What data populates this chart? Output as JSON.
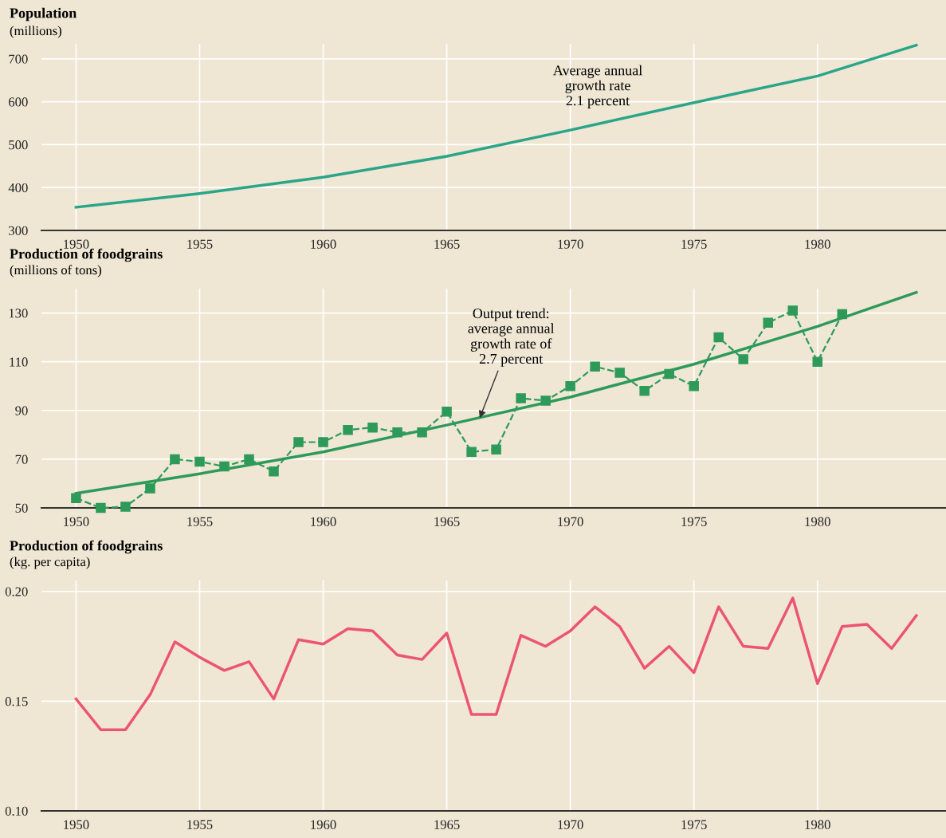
{
  "chart_data": [
    {
      "type": "line",
      "title": "Population",
      "subtitle": "(millions)",
      "xlim": [
        1948.6,
        1985.2
      ],
      "ylim": [
        300,
        735
      ],
      "xticks": [
        1950,
        1955,
        1960,
        1965,
        1970,
        1975,
        1980
      ],
      "yticks": [
        300,
        400,
        500,
        600,
        700
      ],
      "grid": true,
      "series": [
        {
          "color": "#2aa58a",
          "x": [
            1950,
            1955,
            1960,
            1965,
            1970,
            1975,
            1980,
            1984
          ],
          "values": [
            354,
            386,
            424,
            473,
            534,
            598,
            660,
            732
          ]
        }
      ],
      "annotations": [
        "Average annual\ngrowth rate\n2.1 percent"
      ]
    },
    {
      "type": "line",
      "title": "Production of foodgrains",
      "subtitle": "(millions of tons)",
      "xlim": [
        1948.6,
        1985.2
      ],
      "ylim": [
        50,
        140
      ],
      "xticks": [
        1950,
        1955,
        1960,
        1965,
        1970,
        1975,
        1980
      ],
      "yticks": [
        50,
        70,
        90,
        110,
        130
      ],
      "grid": true,
      "series": [
        {
          "color": "#2e9a5a",
          "marker": "square",
          "line_style": "dashed",
          "x": [
            1950,
            1951,
            1952,
            1953,
            1954,
            1955,
            1956,
            1957,
            1958,
            1959,
            1960,
            1961,
            1962,
            1963,
            1964,
            1965,
            1966,
            1967,
            1968,
            1969,
            1970,
            1971,
            1972,
            1973,
            1974,
            1975,
            1976,
            1977,
            1978,
            1979,
            1980,
            1981
          ],
          "values": [
            54,
            50,
            50.5,
            58,
            70,
            69,
            67,
            70,
            65,
            77,
            77,
            82,
            83,
            81,
            81,
            89.5,
            73,
            74,
            95,
            94,
            100,
            108,
            105.5,
            98,
            105,
            100,
            120,
            111,
            126,
            131,
            110,
            129.5
          ]
        },
        {
          "color": "#2e9a5a",
          "marker": "none",
          "line_style": "solid",
          "x": [
            1950,
            1955,
            1960,
            1965,
            1970,
            1975,
            1980,
            1984
          ],
          "values": [
            56,
            64,
            73,
            84,
            95.5,
            109,
            124.5,
            138.5
          ]
        }
      ],
      "annotations": [
        {
          "text": "Output trend:\naverage annual\ngrowth rate of\n2.7 percent",
          "x": 1966.3,
          "y": 86
        }
      ]
    },
    {
      "type": "line",
      "title": "Production of foodgrains",
      "subtitle": "(kg. per capita)",
      "xlim": [
        1948.6,
        1985.2
      ],
      "ylim": [
        0.1,
        0.205
      ],
      "xticks": [
        1950,
        1955,
        1960,
        1965,
        1970,
        1975,
        1980
      ],
      "yticks": [
        {
          "value": 0.1,
          "label": "0.10"
        },
        {
          "value": 0.15,
          "label": "0.15"
        },
        {
          "value": 0.2,
          "label": "0.20"
        }
      ],
      "grid": true,
      "series": [
        {
          "color": "#ec5570",
          "x": [
            1950,
            1951,
            1952,
            1953,
            1954,
            1955,
            1956,
            1957,
            1958,
            1959,
            1960,
            1961,
            1962,
            1963,
            1964,
            1965,
            1966,
            1967,
            1968,
            1969,
            1970,
            1971,
            1972,
            1973,
            1974,
            1975,
            1976,
            1977,
            1978,
            1979,
            1980,
            1981,
            1982,
            1983,
            1984
          ],
          "values": [
            0.151,
            0.137,
            0.137,
            0.153,
            0.177,
            0.17,
            0.164,
            0.168,
            0.151,
            0.178,
            0.176,
            0.183,
            0.182,
            0.171,
            0.169,
            0.181,
            0.144,
            0.144,
            0.18,
            0.175,
            0.182,
            0.193,
            0.184,
            0.165,
            0.175,
            0.163,
            0.193,
            0.175,
            0.174,
            0.197,
            0.158,
            0.184,
            0.185,
            0.174,
            0.189
          ]
        }
      ]
    }
  ]
}
